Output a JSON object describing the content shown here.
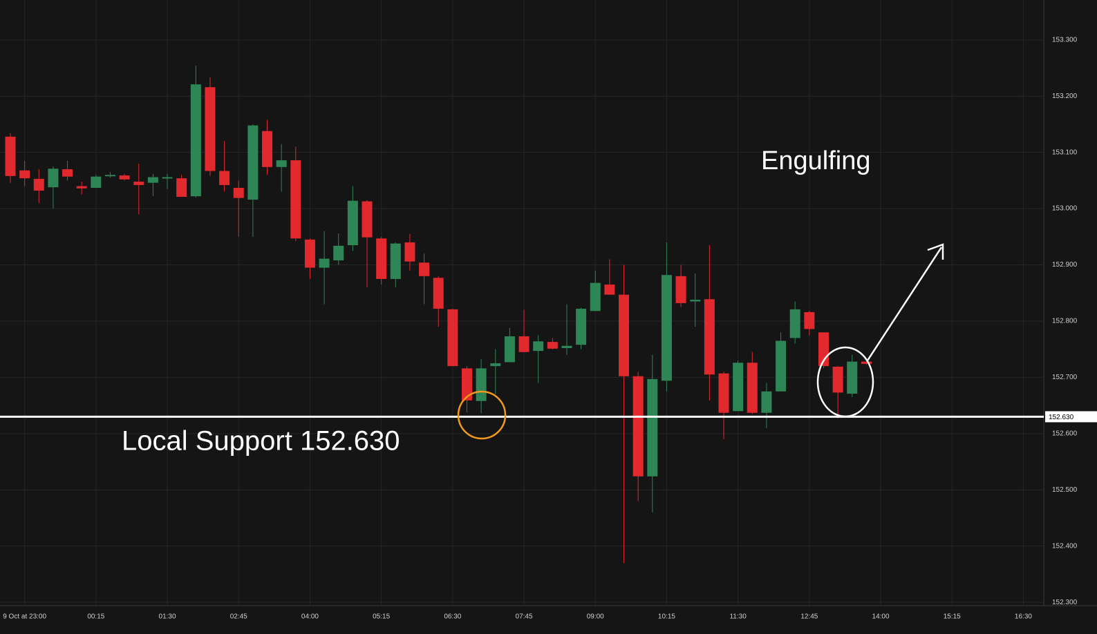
{
  "chart_data": {
    "type": "candlestick",
    "categories": [
      null,
      "9 Oct at 23:00",
      null,
      null,
      null,
      null,
      "00:15",
      null,
      null,
      null,
      null,
      "01:30",
      null,
      null,
      null,
      null,
      "02:45",
      null,
      null,
      null,
      null,
      "04:00",
      null,
      null,
      null,
      null,
      "05:15",
      null,
      null,
      null,
      null,
      "06:30",
      null,
      null,
      null,
      null,
      "07:45",
      null,
      null,
      null,
      null,
      "09:00",
      null,
      null,
      null,
      null,
      "10:15",
      null,
      null,
      null,
      null,
      "11:30",
      null,
      null,
      null,
      null,
      "12:45",
      null,
      null,
      null,
      null,
      "14:00",
      null,
      null,
      null,
      null,
      "15:15",
      null,
      null,
      null,
      null,
      "16:30"
    ],
    "open": [
      153.128,
      153.068,
      153.053,
      153.038,
      153.07,
      153.04,
      153.037,
      153.058,
      153.059,
      153.048,
      153.046,
      153.054,
      153.054,
      153.022,
      153.216,
      153.067,
      153.037,
      153.016,
      153.138,
      153.074,
      153.086,
      152.945,
      152.895,
      152.908,
      152.935,
      153.013,
      152.947,
      152.875,
      152.94,
      152.904,
      152.877,
      152.821,
      152.716,
      152.658,
      152.72,
      152.727,
      152.773,
      152.747,
      152.763,
      152.752,
      152.758,
      152.818,
      152.865,
      152.847,
      152.702,
      152.524,
      152.694,
      152.88,
      152.835,
      152.839,
      152.707,
      152.64,
      152.726,
      152.637,
      152.675,
      152.77,
      152.816,
      152.78,
      152.719,
      152.671,
      152.728,
      null,
      null,
      null,
      null,
      null,
      null,
      null,
      null,
      null,
      null,
      null
    ],
    "high": [
      153.134,
      153.085,
      153.07,
      153.075,
      153.085,
      153.048,
      153.06,
      153.065,
      153.062,
      153.08,
      153.062,
      153.062,
      153.06,
      153.254,
      153.234,
      153.12,
      153.05,
      153.15,
      153.158,
      153.115,
      153.11,
      152.947,
      152.96,
      152.956,
      153.04,
      153.015,
      152.95,
      152.94,
      152.955,
      152.92,
      152.88,
      152.822,
      152.72,
      152.732,
      152.75,
      152.788,
      152.82,
      152.775,
      152.77,
      152.83,
      152.824,
      152.89,
      152.91,
      152.9,
      152.71,
      152.74,
      152.94,
      152.9,
      152.885,
      152.935,
      152.71,
      152.73,
      152.745,
      152.69,
      152.78,
      152.835,
      152.818,
      152.78,
      152.72,
      152.74,
      152.73,
      null,
      null,
      null,
      null,
      null,
      null,
      null,
      null,
      null,
      null,
      null
    ],
    "low": [
      153.046,
      153.04,
      153.01,
      153.0,
      153.05,
      153.025,
      153.037,
      153.055,
      153.05,
      152.99,
      153.022,
      153.035,
      153.021,
      153.02,
      153.058,
      153.03,
      152.95,
      152.95,
      153.06,
      153.03,
      152.942,
      152.875,
      152.83,
      152.9,
      152.925,
      152.86,
      152.865,
      152.86,
      152.89,
      152.83,
      152.79,
      152.72,
      152.638,
      152.636,
      152.67,
      152.727,
      152.745,
      152.69,
      152.75,
      152.74,
      152.75,
      152.818,
      152.847,
      152.37,
      152.48,
      152.46,
      152.675,
      152.825,
      152.79,
      152.659,
      152.59,
      152.64,
      152.635,
      152.61,
      152.675,
      152.76,
      152.775,
      152.716,
      152.627,
      152.665,
      152.722,
      null,
      null,
      null,
      null,
      null,
      null,
      null,
      null,
      null,
      null,
      null
    ],
    "close": [
      153.058,
      153.054,
      153.032,
      153.071,
      153.057,
      153.036,
      153.057,
      153.06,
      153.052,
      153.042,
      153.056,
      153.056,
      153.021,
      153.221,
      153.067,
      153.042,
      153.019,
      153.148,
      153.074,
      153.086,
      152.947,
      152.895,
      152.911,
      152.934,
      153.014,
      152.949,
      152.875,
      152.938,
      152.906,
      152.88,
      152.822,
      152.72,
      152.659,
      152.716,
      152.725,
      152.773,
      152.745,
      152.764,
      152.751,
      152.756,
      152.822,
      152.868,
      152.847,
      152.702,
      152.524,
      152.697,
      152.882,
      152.832,
      152.838,
      152.705,
      152.637,
      152.726,
      152.637,
      152.675,
      152.765,
      152.821,
      152.786,
      152.72,
      152.673,
      152.728,
      152.724,
      null,
      null,
      null,
      null,
      null,
      null,
      null,
      null,
      null,
      null,
      null
    ],
    "up_color": "#2e8657",
    "down_color": "#e2292e",
    "ylim": [
      152.294,
      153.371
    ],
    "yticks": [
      {
        "value": 152.3,
        "label": "152.300"
      },
      {
        "value": 152.4,
        "label": "152.400"
      },
      {
        "value": 152.5,
        "label": "152.500"
      },
      {
        "value": 152.6,
        "label": "152.600"
      },
      {
        "value": 152.7,
        "label": "152.700"
      },
      {
        "value": 152.8,
        "label": "152.800"
      },
      {
        "value": 152.9,
        "label": "152.900"
      },
      {
        "value": 153.0,
        "label": "153.000"
      },
      {
        "value": 153.1,
        "label": "153.100"
      },
      {
        "value": 153.2,
        "label": "153.200"
      },
      {
        "value": 153.3,
        "label": "153.300"
      }
    ],
    "grid": true,
    "support": {
      "value": 152.63,
      "label": "152.630",
      "color": "#ffffff"
    },
    "annotations": [
      "Local Support 152.630",
      "Engulfing"
    ]
  }
}
